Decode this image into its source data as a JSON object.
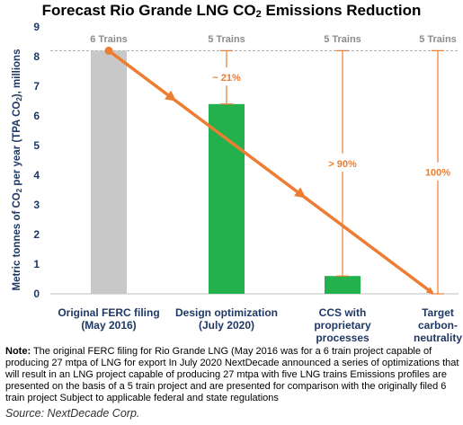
{
  "chart_data": {
    "type": "bar",
    "title_parts": {
      "before": "Forecast Rio Grande LNG CO",
      "sub": "2",
      "after": " Emissions Reduction"
    },
    "ylabel_parts": {
      "before": "Metric tonnes of CO",
      "sub1": "2",
      "mid": " per year (TPA CO",
      "sub2": "2",
      "after": "), millions"
    },
    "ylim": [
      0,
      9
    ],
    "yticks": [
      "0",
      "1",
      "2",
      "3",
      "4",
      "5",
      "6",
      "7",
      "8",
      "9"
    ],
    "grid": false,
    "categories": [
      "Original FERC filing\n(May 2016)",
      "Design optimization\n(July 2020)",
      "CCS with\nproprietary\nprocesses",
      "Target\ncarbon-\nneutrality"
    ],
    "values": [
      8.2,
      6.4,
      0.6,
      0
    ],
    "bar_colors": [
      "#c8c8c8",
      "#22b14c",
      "#22b14c",
      "#22b14c"
    ],
    "train_labels": [
      "6 Trains",
      "5 Trains",
      "5 Trains",
      "5 Trains"
    ],
    "reduction_labels": [
      "",
      "~ 21%",
      "> 90%",
      "100%"
    ],
    "baseline": 8.2,
    "trend_line": {
      "from_value": 8.2,
      "to_value": 0,
      "color": "#ed7d31"
    },
    "colors": {
      "axis_text": "#1f3864",
      "annotation": "#ed7d31",
      "train_label": "#8c8c8c",
      "baseline": "#a6a6a6"
    }
  },
  "note": {
    "label": "Note:",
    "text": " The original FERC filing for Rio Grande LNG (May 2016 was for a 6 train project capable of producing 27 mtpa of LNG for export In July 2020 NextDecade announced a series of optimizations that will result in an LNG project capable of producing 27 mtpa with five LNG trains Emissions profiles are presented on the basis of a 5 train project and are presented for comparison with the originally filed 6 train project Subject to applicable federal and state regulations"
  },
  "source": "Source: NextDecade Corp."
}
